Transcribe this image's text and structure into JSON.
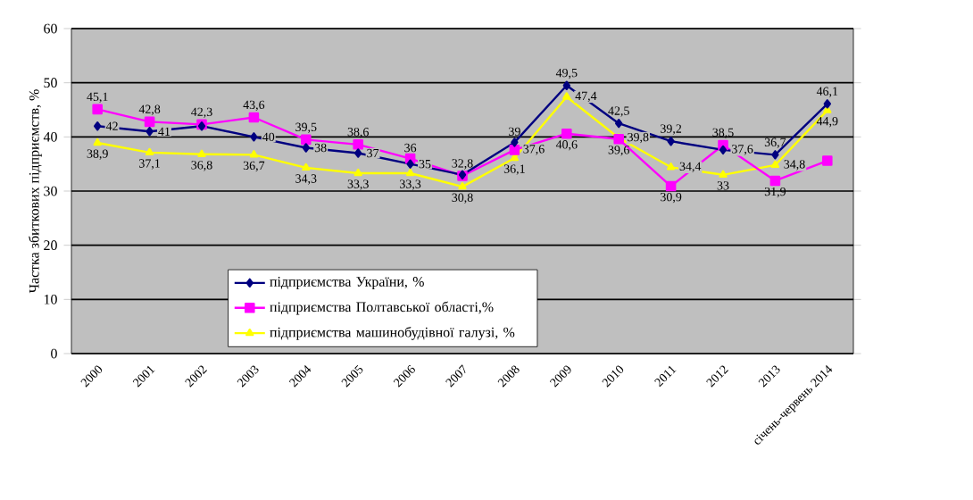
{
  "chart_data": {
    "type": "line",
    "ylabel": "Частка збиткових підприємств, %",
    "categories": [
      "2000",
      "2001",
      "2002",
      "2003",
      "2004",
      "2005",
      "2006",
      "2007",
      "2008",
      "2009",
      "2010",
      "2011",
      "2012",
      "2013",
      "січень-червень 2014"
    ],
    "series": [
      {
        "name": "підприємства України, %",
        "color": "#000080",
        "marker": "diamond",
        "values": [
          42,
          41,
          42,
          40,
          38,
          37,
          35,
          33,
          39,
          49.5,
          42.5,
          39.2,
          37.6,
          36.7,
          46.1
        ],
        "value_labels": [
          "42",
          "41",
          null,
          "40",
          "38",
          "37",
          "35",
          null,
          "39",
          "49,5",
          "42,5",
          "39,2",
          "37,6",
          "36,7",
          "46,1"
        ]
      },
      {
        "name": "підприємства Полтавської області,%",
        "color": "#ff00ff",
        "marker": "square",
        "values": [
          45.1,
          42.8,
          42.3,
          43.6,
          39.5,
          38.6,
          36,
          32.8,
          37.6,
          40.6,
          39.6,
          30.9,
          38.5,
          31.9,
          35.6
        ],
        "value_labels": [
          "45,1",
          "42,8",
          "42,3",
          "43,6",
          "39,5",
          "38,6",
          "36",
          "32,8",
          "37,6",
          "40,6",
          "39,6",
          "30,9",
          "38,5",
          "31,9",
          null
        ]
      },
      {
        "name": "підприємства машинобудівної галузі, %",
        "color": "#ffff00",
        "marker": "triangle",
        "values": [
          38.9,
          37.1,
          36.8,
          36.7,
          34.3,
          33.3,
          33.3,
          30.8,
          36.1,
          47.4,
          39.8,
          34.4,
          33,
          34.8,
          44.9
        ],
        "value_labels": [
          "38,9",
          "37,1",
          "36,8",
          "36,7",
          "34,3",
          "33,3",
          "33,3",
          "30,8",
          "36,1",
          "47,4",
          "39,8",
          "34,4",
          "33",
          "34,8",
          "44,9"
        ]
      }
    ],
    "ylim": [
      0,
      60
    ],
    "yticks": [
      0,
      10,
      20,
      30,
      40,
      50,
      60
    ],
    "grid": "y",
    "legend": "bottom left"
  }
}
